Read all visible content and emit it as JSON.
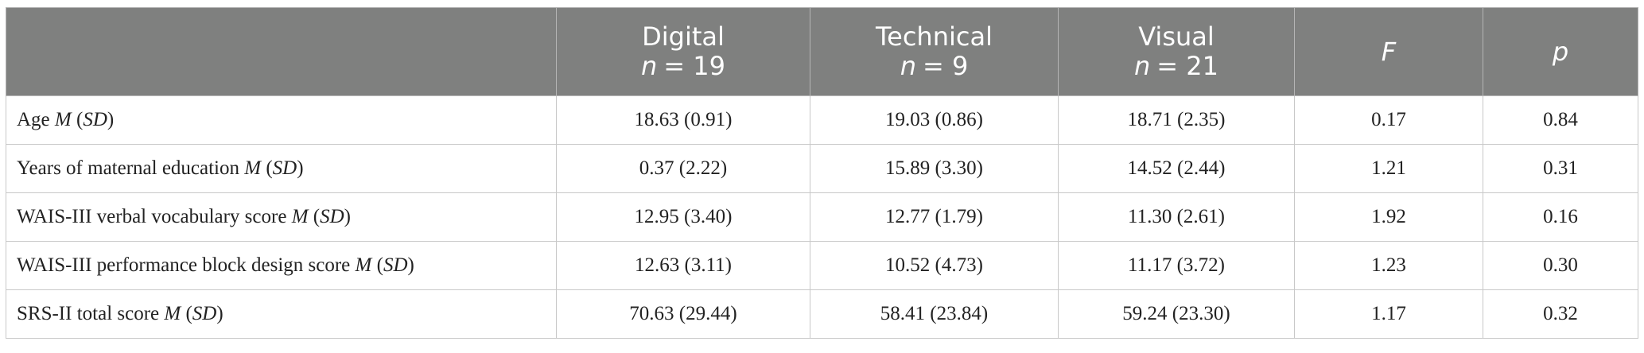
{
  "table": {
    "header": {
      "columns": [
        {
          "name": "Digital",
          "n": "= 19"
        },
        {
          "name": "Technical",
          "n": "= 9"
        },
        {
          "name": "Visual",
          "n": "= 21"
        }
      ],
      "n_symbol": "n",
      "stat_columns": [
        "F",
        "p"
      ]
    },
    "stat_parts": [
      "M",
      "(",
      "SD",
      ")"
    ],
    "rows": [
      {
        "label": "Age",
        "cells": [
          "18.63 (0.91)",
          "19.03 (0.86)",
          "18.71 (2.35)",
          "0.17",
          "0.84"
        ]
      },
      {
        "label": "Years of maternal education",
        "cells": [
          "0.37 (2.22)",
          "15.89 (3.30)",
          "14.52 (2.44)",
          "1.21",
          "0.31"
        ]
      },
      {
        "label": "WAIS-III verbal vocabulary score",
        "cells": [
          "12.95 (3.40)",
          "12.77 (1.79)",
          "11.30 (2.61)",
          "1.92",
          "0.16"
        ]
      },
      {
        "label": "WAIS-III performance block design score",
        "cells": [
          "12.63 (3.11)",
          "10.52 (4.73)",
          "11.17 (3.72)",
          "1.23",
          "0.30"
        ]
      },
      {
        "label": "SRS-II total score",
        "cells": [
          "70.63 (29.44)",
          "58.41 (23.84)",
          "59.24 (23.30)",
          "1.17",
          "0.32"
        ]
      }
    ]
  }
}
